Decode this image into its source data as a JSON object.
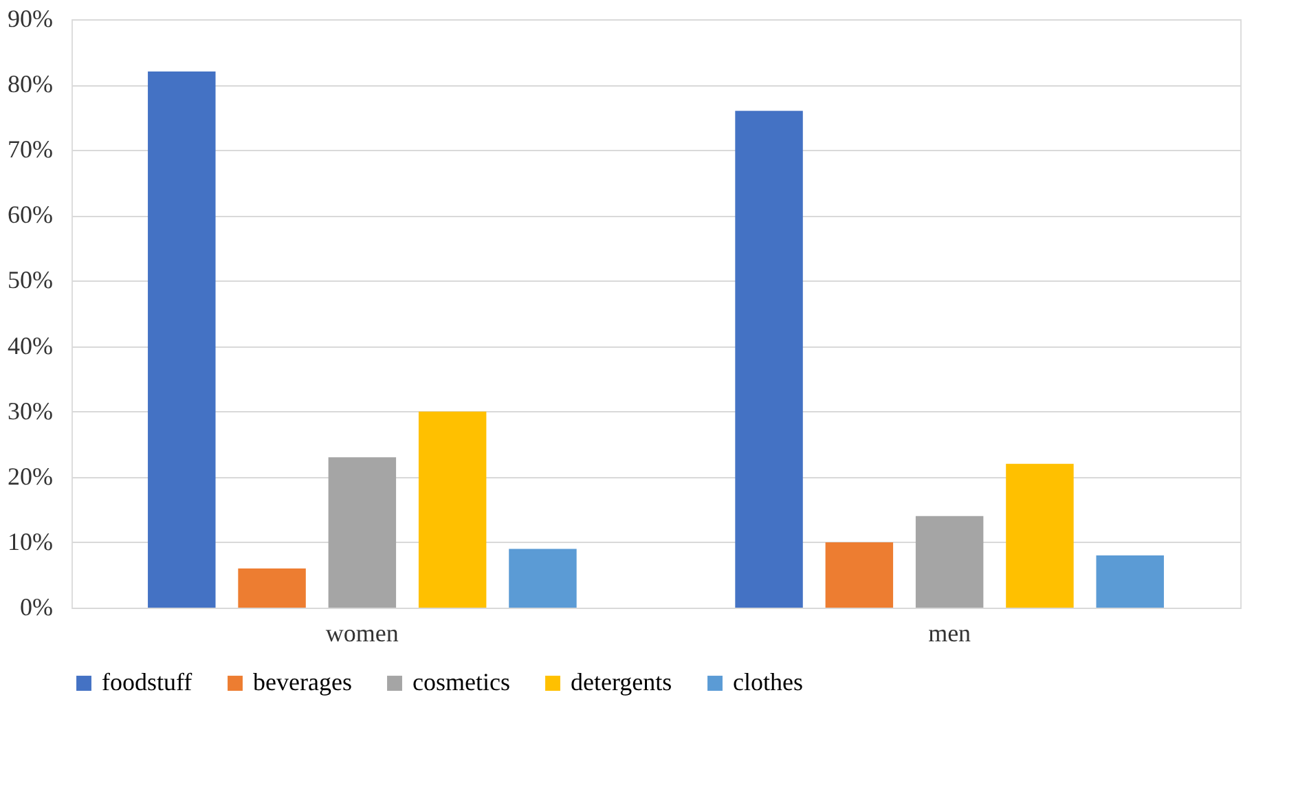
{
  "chart_data": {
    "type": "bar",
    "categories": [
      "women",
      "men"
    ],
    "series": [
      {
        "name": "foodstuff",
        "color": "#4472c4",
        "values": [
          82,
          76
        ]
      },
      {
        "name": "beverages",
        "color": "#ed7d31",
        "values": [
          6,
          10
        ]
      },
      {
        "name": "cosmetics",
        "color": "#a5a5a5",
        "values": [
          23,
          14
        ]
      },
      {
        "name": "detergents",
        "color": "#ffc000",
        "values": [
          30,
          22
        ]
      },
      {
        "name": "clothes",
        "color": "#5b9bd5",
        "values": [
          9,
          8
        ]
      }
    ],
    "ylim": [
      0,
      90
    ],
    "yticks": [
      {
        "value": 0,
        "label": "0%"
      },
      {
        "value": 10,
        "label": "10%"
      },
      {
        "value": 20,
        "label": "20%"
      },
      {
        "value": 30,
        "label": "30%"
      },
      {
        "value": 40,
        "label": "40%"
      },
      {
        "value": 50,
        "label": "50%"
      },
      {
        "value": 60,
        "label": "60%"
      },
      {
        "value": 70,
        "label": "70%"
      },
      {
        "value": 80,
        "label": "80%"
      },
      {
        "value": 90,
        "label": "90%"
      }
    ],
    "grid": "y",
    "legend": "bottom"
  }
}
